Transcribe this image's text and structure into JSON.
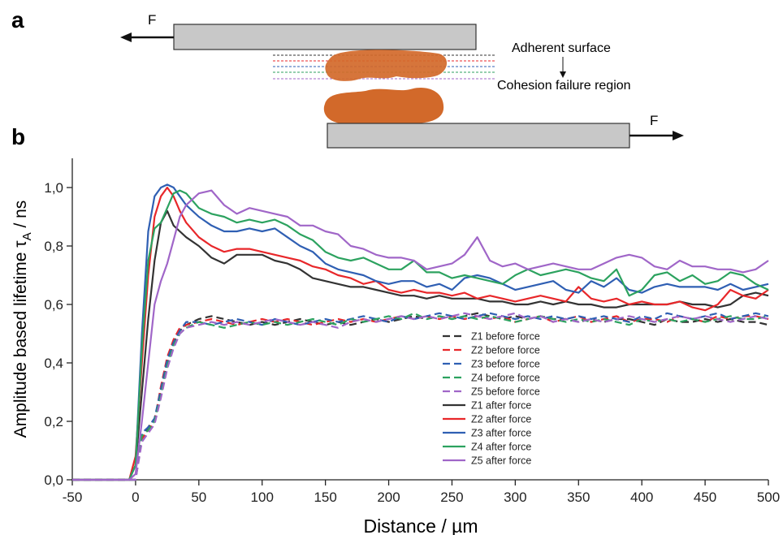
{
  "figure": {
    "panel_labels": [
      "a",
      "b"
    ]
  },
  "diagram": {
    "force_left": "F",
    "force_right": "F",
    "adherent_surface": "Adherent surface",
    "cohesion_failure": "Cohesion failure region"
  },
  "chart_data": {
    "type": "line",
    "xlabel": "Distance / µm",
    "ylabel": {
      "main": "Amplitude based lifetime τ",
      "sub": "A",
      "unit": " / ns"
    },
    "x": [
      -50,
      -5,
      0,
      5,
      10,
      15,
      20,
      25,
      30,
      35,
      40,
      50,
      60,
      70,
      80,
      90,
      100,
      110,
      120,
      130,
      140,
      150,
      160,
      170,
      180,
      190,
      200,
      210,
      220,
      230,
      240,
      250,
      260,
      270,
      280,
      290,
      300,
      310,
      320,
      330,
      340,
      350,
      360,
      370,
      380,
      390,
      400,
      410,
      420,
      430,
      440,
      450,
      460,
      470,
      480,
      490,
      500
    ],
    "xlim": [
      -50,
      500
    ],
    "xticks": [
      -50,
      0,
      50,
      100,
      150,
      200,
      250,
      300,
      350,
      400,
      450,
      500
    ],
    "ylim": [
      0,
      1.1
    ],
    "yticks": [
      {
        "value": 0,
        "label": "0,0"
      },
      {
        "value": 0.2,
        "label": "0,2"
      },
      {
        "value": 0.4,
        "label": "0,4"
      },
      {
        "value": 0.6,
        "label": "0,6"
      },
      {
        "value": 0.8,
        "label": "0,8"
      },
      {
        "value": 1.0,
        "label": "1,0"
      }
    ],
    "legend": "lower center",
    "series": [
      {
        "name": "Z1 before force",
        "color": "#333333",
        "dashed": true,
        "values": [
          0,
          0,
          0,
          0.15,
          0.18,
          0.21,
          0.3,
          0.4,
          0.47,
          0.51,
          0.53,
          0.55,
          0.56,
          0.55,
          0.54,
          0.53,
          0.54,
          0.53,
          0.54,
          0.55,
          0.54,
          0.53,
          0.54,
          0.53,
          0.54,
          0.55,
          0.54,
          0.55,
          0.56,
          0.55,
          0.56,
          0.55,
          0.56,
          0.57,
          0.56,
          0.55,
          0.56,
          0.55,
          0.56,
          0.55,
          0.55,
          0.54,
          0.55,
          0.54,
          0.55,
          0.55,
          0.54,
          0.53,
          0.55,
          0.54,
          0.54,
          0.55,
          0.54,
          0.55,
          0.54,
          0.54,
          0.53
        ]
      },
      {
        "name": "Z2 before force",
        "color": "#e8272a",
        "dashed": true,
        "values": [
          0,
          0,
          0,
          0.14,
          0.17,
          0.2,
          0.32,
          0.42,
          0.48,
          0.52,
          0.53,
          0.54,
          0.55,
          0.54,
          0.53,
          0.54,
          0.55,
          0.54,
          0.55,
          0.54,
          0.53,
          0.54,
          0.55,
          0.54,
          0.55,
          0.54,
          0.55,
          0.56,
          0.55,
          0.56,
          0.55,
          0.56,
          0.55,
          0.56,
          0.55,
          0.56,
          0.54,
          0.55,
          0.56,
          0.54,
          0.55,
          0.56,
          0.54,
          0.55,
          0.56,
          0.54,
          0.55,
          0.55,
          0.54,
          0.56,
          0.55,
          0.54,
          0.56,
          0.55,
          0.56,
          0.56,
          0.55
        ]
      },
      {
        "name": "Z3 before force",
        "color": "#2f5fb3",
        "dashed": true,
        "values": [
          0,
          0,
          0,
          0.16,
          0.18,
          0.21,
          0.31,
          0.41,
          0.47,
          0.51,
          0.54,
          0.54,
          0.53,
          0.54,
          0.55,
          0.54,
          0.53,
          0.55,
          0.54,
          0.53,
          0.54,
          0.55,
          0.54,
          0.55,
          0.56,
          0.55,
          0.54,
          0.56,
          0.55,
          0.56,
          0.57,
          0.56,
          0.55,
          0.56,
          0.57,
          0.56,
          0.55,
          0.56,
          0.55,
          0.56,
          0.55,
          0.56,
          0.55,
          0.56,
          0.55,
          0.54,
          0.56,
          0.55,
          0.57,
          0.56,
          0.55,
          0.56,
          0.57,
          0.55,
          0.56,
          0.57,
          0.56
        ]
      },
      {
        "name": "Z4 before force",
        "color": "#2ca25f",
        "dashed": true,
        "values": [
          0,
          0,
          0,
          0.15,
          0.17,
          0.2,
          0.29,
          0.39,
          0.46,
          0.5,
          0.52,
          0.54,
          0.53,
          0.52,
          0.53,
          0.54,
          0.53,
          0.54,
          0.53,
          0.54,
          0.55,
          0.54,
          0.53,
          0.55,
          0.54,
          0.55,
          0.56,
          0.55,
          0.57,
          0.55,
          0.56,
          0.55,
          0.56,
          0.55,
          0.56,
          0.55,
          0.54,
          0.55,
          0.56,
          0.55,
          0.54,
          0.55,
          0.54,
          0.55,
          0.54,
          0.53,
          0.55,
          0.54,
          0.55,
          0.54,
          0.55,
          0.54,
          0.55,
          0.56,
          0.55,
          0.55,
          0.56
        ]
      },
      {
        "name": "Z5 before force",
        "color": "#a066c8",
        "dashed": true,
        "values": [
          0,
          0,
          0,
          0.13,
          0.16,
          0.19,
          0.28,
          0.38,
          0.45,
          0.5,
          0.52,
          0.53,
          0.54,
          0.53,
          0.54,
          0.53,
          0.54,
          0.55,
          0.54,
          0.53,
          0.54,
          0.53,
          0.52,
          0.54,
          0.55,
          0.54,
          0.55,
          0.56,
          0.55,
          0.56,
          0.55,
          0.56,
          0.57,
          0.56,
          0.55,
          0.56,
          0.57,
          0.55,
          0.56,
          0.54,
          0.55,
          0.54,
          0.55,
          0.54,
          0.55,
          0.56,
          0.55,
          0.54,
          0.55,
          0.56,
          0.55,
          0.56,
          0.55,
          0.54,
          0.55,
          0.56,
          0.55
        ]
      },
      {
        "name": "Z1 after force",
        "color": "#333333",
        "dashed": false,
        "values": [
          0,
          0,
          0.05,
          0.3,
          0.55,
          0.75,
          0.88,
          0.92,
          0.87,
          0.85,
          0.83,
          0.8,
          0.76,
          0.74,
          0.77,
          0.77,
          0.77,
          0.75,
          0.74,
          0.72,
          0.69,
          0.68,
          0.67,
          0.66,
          0.66,
          0.65,
          0.64,
          0.63,
          0.63,
          0.62,
          0.63,
          0.62,
          0.62,
          0.62,
          0.61,
          0.61,
          0.6,
          0.6,
          0.61,
          0.6,
          0.61,
          0.6,
          0.6,
          0.59,
          0.59,
          0.6,
          0.6,
          0.6,
          0.6,
          0.61,
          0.6,
          0.6,
          0.59,
          0.6,
          0.63,
          0.64,
          0.63
        ]
      },
      {
        "name": "Z2 after force",
        "color": "#e8272a",
        "dashed": false,
        "values": [
          0,
          0,
          0.08,
          0.4,
          0.7,
          0.9,
          0.97,
          1.0,
          0.97,
          0.92,
          0.88,
          0.83,
          0.8,
          0.78,
          0.79,
          0.79,
          0.78,
          0.77,
          0.76,
          0.75,
          0.73,
          0.72,
          0.7,
          0.69,
          0.67,
          0.68,
          0.65,
          0.64,
          0.65,
          0.64,
          0.64,
          0.63,
          0.64,
          0.62,
          0.63,
          0.62,
          0.61,
          0.62,
          0.63,
          0.62,
          0.61,
          0.66,
          0.62,
          0.61,
          0.62,
          0.6,
          0.61,
          0.6,
          0.6,
          0.61,
          0.59,
          0.58,
          0.6,
          0.65,
          0.63,
          0.62,
          0.65
        ]
      },
      {
        "name": "Z3 after force",
        "color": "#2f5fb3",
        "dashed": false,
        "values": [
          0,
          0,
          0.05,
          0.5,
          0.85,
          0.97,
          1.0,
          1.01,
          1.0,
          0.97,
          0.94,
          0.9,
          0.87,
          0.85,
          0.85,
          0.86,
          0.85,
          0.86,
          0.83,
          0.8,
          0.78,
          0.74,
          0.72,
          0.71,
          0.7,
          0.68,
          0.67,
          0.68,
          0.68,
          0.66,
          0.67,
          0.65,
          0.69,
          0.7,
          0.69,
          0.67,
          0.65,
          0.66,
          0.67,
          0.68,
          0.65,
          0.64,
          0.68,
          0.66,
          0.69,
          0.65,
          0.64,
          0.66,
          0.67,
          0.66,
          0.66,
          0.66,
          0.65,
          0.67,
          0.65,
          0.66,
          0.67
        ]
      },
      {
        "name": "Z4 after force",
        "color": "#2ca25f",
        "dashed": false,
        "values": [
          0,
          0,
          0.05,
          0.45,
          0.75,
          0.86,
          0.88,
          0.93,
          0.98,
          0.99,
          0.98,
          0.93,
          0.91,
          0.9,
          0.88,
          0.89,
          0.88,
          0.89,
          0.87,
          0.84,
          0.82,
          0.78,
          0.76,
          0.75,
          0.76,
          0.74,
          0.72,
          0.72,
          0.75,
          0.71,
          0.71,
          0.69,
          0.7,
          0.69,
          0.68,
          0.67,
          0.7,
          0.72,
          0.7,
          0.71,
          0.72,
          0.71,
          0.69,
          0.68,
          0.72,
          0.63,
          0.65,
          0.7,
          0.71,
          0.68,
          0.7,
          0.67,
          0.68,
          0.71,
          0.7,
          0.67,
          0.65
        ]
      },
      {
        "name": "Z5 after force",
        "color": "#a066c8",
        "dashed": false,
        "values": [
          0,
          0,
          0.02,
          0.2,
          0.4,
          0.6,
          0.68,
          0.74,
          0.82,
          0.9,
          0.94,
          0.98,
          0.99,
          0.94,
          0.91,
          0.93,
          0.92,
          0.91,
          0.9,
          0.87,
          0.87,
          0.85,
          0.84,
          0.8,
          0.79,
          0.77,
          0.76,
          0.76,
          0.75,
          0.72,
          0.73,
          0.74,
          0.77,
          0.83,
          0.75,
          0.73,
          0.74,
          0.72,
          0.73,
          0.74,
          0.73,
          0.72,
          0.72,
          0.74,
          0.76,
          0.77,
          0.76,
          0.73,
          0.72,
          0.75,
          0.73,
          0.73,
          0.72,
          0.72,
          0.71,
          0.72,
          0.75
        ]
      }
    ]
  }
}
